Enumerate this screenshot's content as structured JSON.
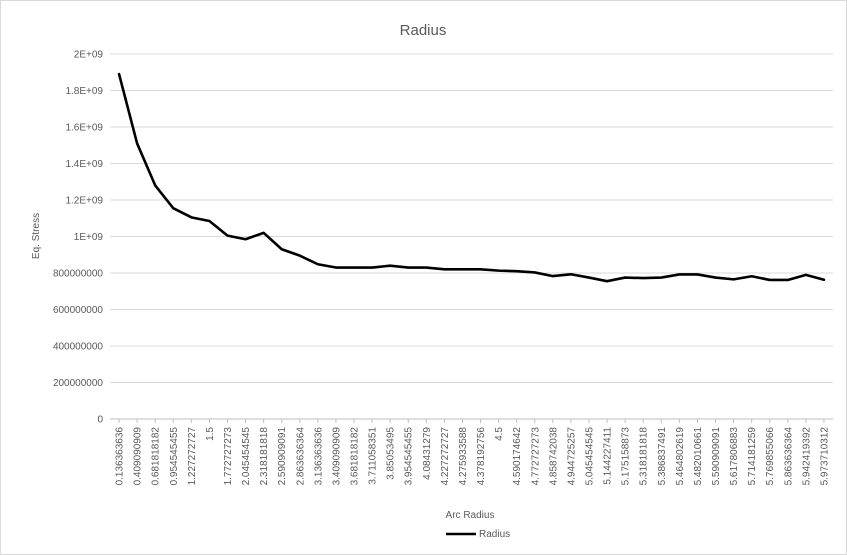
{
  "chart_data": {
    "type": "line",
    "title": "Radius",
    "xlabel": "Arc Radius",
    "ylabel": "Eq. Stress",
    "ylim": [
      0,
      2000000000
    ],
    "y_ticks": [
      0,
      200000000,
      400000000,
      600000000,
      800000000,
      1000000000,
      1200000000,
      1400000000,
      1600000000,
      1800000000,
      2000000000
    ],
    "y_tick_labels": [
      "0",
      "200000000",
      "400000000",
      "600000000",
      "800000000",
      "1E+09",
      "1.2E+09",
      "1.4E+09",
      "1.6E+09",
      "1.8E+09",
      "2E+09"
    ],
    "grid": true,
    "legend": "bottom",
    "line_color": "#000000",
    "categories": [
      "0.136363636",
      "0.409090909",
      "0.681818182",
      "0.954545455",
      "1.227272727",
      "1.5",
      "1.772727273",
      "2.045454545",
      "2.318181818",
      "2.590909091",
      "2.863636364",
      "3.136363636",
      "3.409090909",
      "3.681818182",
      "3.711058351",
      "3.85053495",
      "3.954545455",
      "4.08431279",
      "4.227272727",
      "4.275933588",
      "4.378192756",
      "4.5",
      "4.590174642",
      "4.772727273",
      "4.858742038",
      "4.944725257",
      "5.045454545",
      "5.144227411",
      "5.175158873",
      "5.318181818",
      "5.386837491",
      "5.464802619",
      "5.482010661",
      "5.590909091",
      "5.617806883",
      "5.714181259",
      "5.769855066",
      "5.863636364",
      "5.942419392",
      "5.973710312"
    ],
    "series": [
      {
        "name": "Radius",
        "values": [
          1890000000,
          1510000000,
          1280000000,
          1155000000,
          1105000000,
          1085000000,
          1005000000,
          985000000,
          1020000000,
          930000000,
          895000000,
          848000000,
          830000000,
          830000000,
          830000000,
          840000000,
          830000000,
          830000000,
          820000000,
          820000000,
          820000000,
          813000000,
          810000000,
          803000000,
          783000000,
          793000000,
          775000000,
          755000000,
          775000000,
          772000000,
          775000000,
          792000000,
          792000000,
          775000000,
          765000000,
          782000000,
          762000000,
          762000000,
          790000000,
          763000000
        ]
      }
    ]
  }
}
